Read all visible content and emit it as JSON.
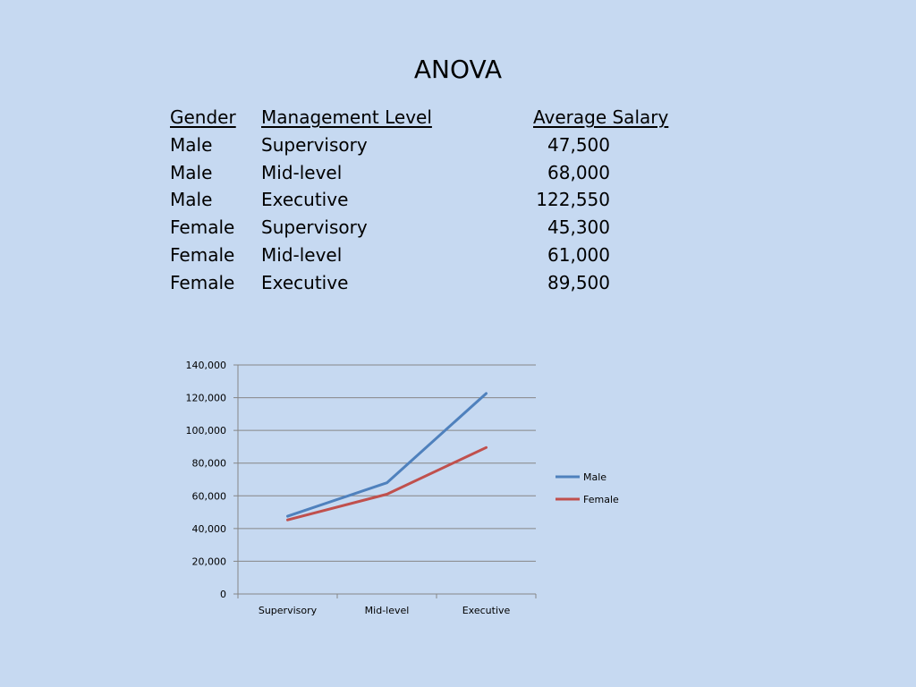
{
  "slide": {
    "title": "ANOVA"
  },
  "table": {
    "headers": {
      "gender": "Gender",
      "level": "Management Level",
      "salary": "Average Salary"
    },
    "rows": [
      {
        "gender": "Male",
        "level": "Supervisory",
        "salary": "47,500"
      },
      {
        "gender": "Male",
        "level": "Mid-level",
        "salary": "68,000"
      },
      {
        "gender": "Male",
        "level": "Executive",
        "salary": "122,550"
      },
      {
        "gender": "Female",
        "level": "Supervisory",
        "salary": "45,300"
      },
      {
        "gender": "Female",
        "level": "Mid-level",
        "salary": "61,000"
      },
      {
        "gender": "Female",
        "level": "Executive",
        "salary": "89,500"
      }
    ]
  },
  "chart_data": {
    "type": "line",
    "categories": [
      "Supervisory",
      "Mid-level",
      "Executive"
    ],
    "series": [
      {
        "name": "Male",
        "values": [
          47500,
          68000,
          122550
        ],
        "color": "#4f81bd"
      },
      {
        "name": "Female",
        "values": [
          45300,
          61000,
          89500
        ],
        "color": "#c0504d"
      }
    ],
    "ylim": [
      0,
      140000
    ],
    "yticks": [
      0,
      20000,
      40000,
      60000,
      80000,
      100000,
      120000,
      140000
    ],
    "ytick_labels": [
      "0",
      "20,000",
      "40,000",
      "60,000",
      "80,000",
      "100,000",
      "120,000",
      "140,000"
    ],
    "grid": true,
    "legend": "right"
  }
}
